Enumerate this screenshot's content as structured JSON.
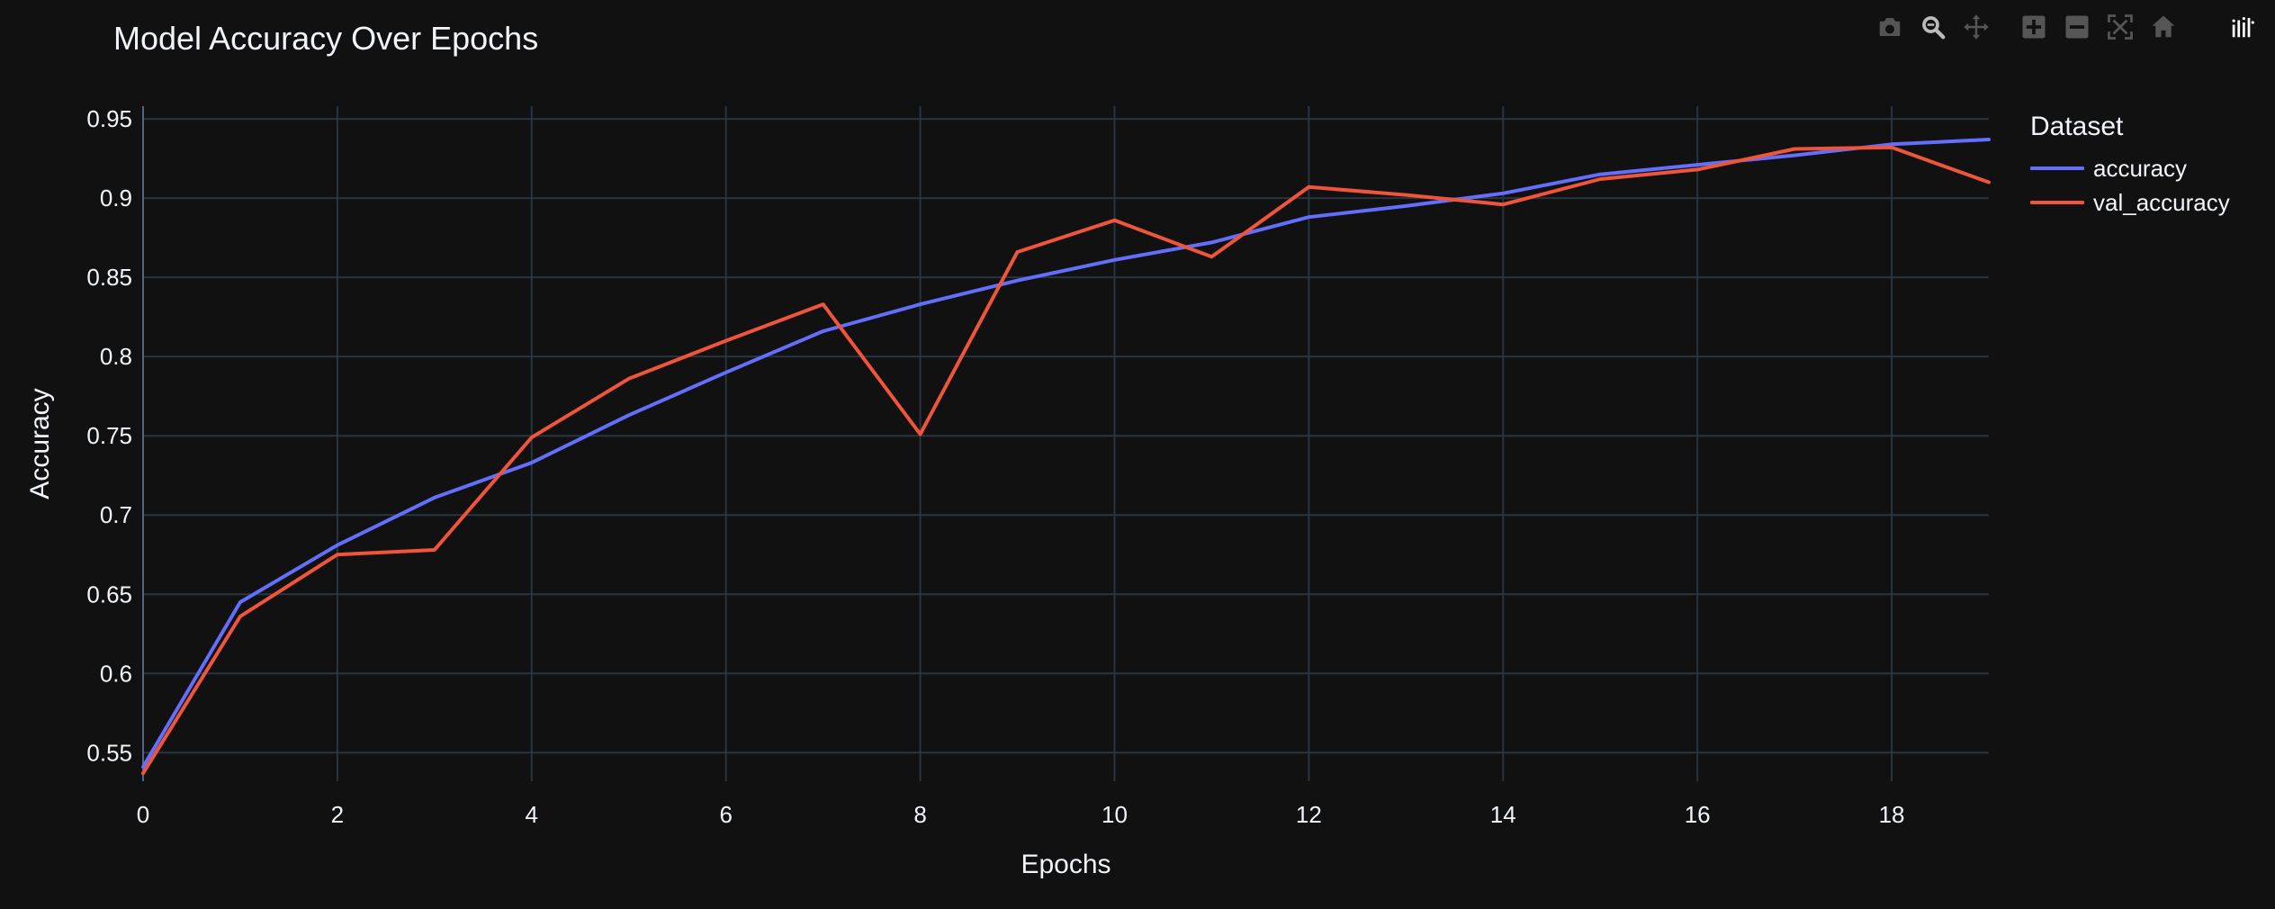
{
  "modebar": {
    "buttons": [
      {
        "name": "camera-icon"
      },
      {
        "name": "zoom-icon"
      },
      {
        "name": "pan-icon"
      },
      {
        "name": "zoom-in-icon"
      },
      {
        "name": "zoom-out-icon"
      },
      {
        "name": "autoscale-icon"
      },
      {
        "name": "home-icon"
      },
      {
        "name": "plotly-logo-icon"
      }
    ]
  },
  "colors": {
    "background": "#111111",
    "grid": "#283442",
    "text": "#f2f5fa",
    "accuracy": "#636efa",
    "val_accuracy": "#ef553b",
    "modebar_icon": "#555555"
  },
  "chart_data": {
    "type": "line",
    "title": "Model Accuracy Over Epochs",
    "xlabel": "Epochs",
    "ylabel": "Accuracy",
    "xlim": [
      0,
      19
    ],
    "ylim": [
      0.532,
      0.958
    ],
    "x_ticks": [
      0,
      2,
      4,
      6,
      8,
      10,
      12,
      14,
      16,
      18
    ],
    "y_ticks": [
      0.55,
      0.6,
      0.65,
      0.7,
      0.75,
      0.8,
      0.85,
      0.9,
      0.95
    ],
    "y_tick_labels": [
      "0.55",
      "0.6",
      "0.65",
      "0.7",
      "0.75",
      "0.8",
      "0.85",
      "0.9",
      "0.95"
    ],
    "grid": true,
    "legend_title": "Dataset",
    "legend_position": "right",
    "x": [
      0,
      1,
      2,
      3,
      4,
      5,
      6,
      7,
      8,
      9,
      10,
      11,
      12,
      13,
      14,
      15,
      16,
      17,
      18,
      19
    ],
    "series": [
      {
        "name": "accuracy",
        "color": "#636efa",
        "values": [
          0.541,
          0.645,
          0.681,
          0.711,
          0.733,
          0.763,
          0.79,
          0.816,
          0.833,
          0.848,
          0.861,
          0.872,
          0.888,
          0.895,
          0.903,
          0.915,
          0.921,
          0.927,
          0.934,
          0.937
        ]
      },
      {
        "name": "val_accuracy",
        "color": "#ef553b",
        "values": [
          0.537,
          0.636,
          0.675,
          0.678,
          0.749,
          0.786,
          0.81,
          0.833,
          0.751,
          0.866,
          0.886,
          0.863,
          0.907,
          0.902,
          0.896,
          0.912,
          0.918,
          0.931,
          0.932,
          0.91
        ]
      }
    ]
  }
}
